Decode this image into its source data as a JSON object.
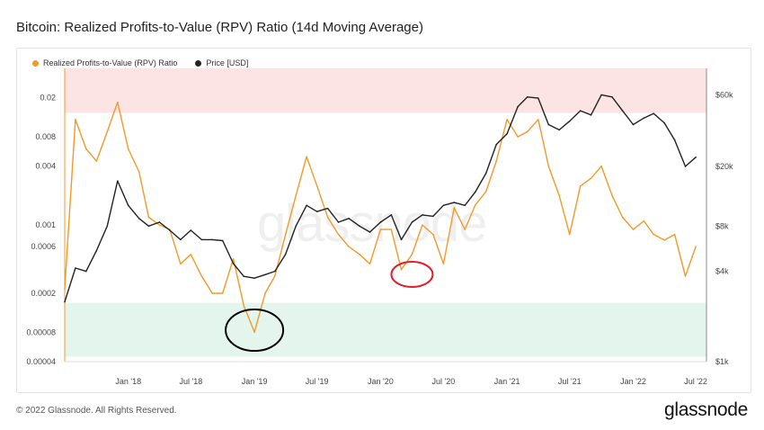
{
  "title": "Bitcoin: Realized Profits-to-Value (RPV) Ratio (14d Moving Average)",
  "footer": "© 2022 Glassnode. All Rights Reserved.",
  "brand": "glassnode",
  "watermark": "glassnode",
  "colors": {
    "rpv": "#f09a2a",
    "price": "#222222",
    "red_zone": "#fde4e4",
    "green_zone": "#e3f5ec",
    "annot_red": "#e0202a",
    "annot_black": "#000000"
  },
  "chart_data": {
    "type": "line",
    "legend": {
      "placement": "top-left",
      "items": [
        "Realized Profits-to-Value (RPV) Ratio",
        "Price [USD]"
      ]
    },
    "x_ticks": [
      "Jan '18",
      "Jul '18",
      "Jan '19",
      "Jul '19",
      "Jan '20",
      "Jul '20",
      "Jan '21",
      "Jul '21",
      "Jan '22",
      "Jul '22"
    ],
    "left_axis": {
      "scale": "log",
      "ticks": [
        "0.02",
        "0.008",
        "0.004",
        "0.001",
        "0.0006",
        "0.0002",
        "0.00008",
        "0.00004"
      ]
    },
    "right_axis": {
      "scale": "log",
      "ticks": [
        "$60k",
        "$20k",
        "$8k",
        "$4k",
        "$1k"
      ]
    },
    "bands": [
      {
        "axis": "left",
        "from": 0.014,
        "to": 0.04,
        "color": "red"
      },
      {
        "axis": "left",
        "from": 4.5e-05,
        "to": 0.00016,
        "color": "green"
      }
    ],
    "annotations": [
      {
        "shape": "ellipse",
        "color": "black",
        "date": "2019-01"
      },
      {
        "shape": "ellipse",
        "color": "red",
        "date": "2020-04"
      }
    ],
    "series": [
      {
        "name": "Realized Profits-to-Value (RPV) Ratio",
        "axis": "left",
        "x": [
          "2017-07",
          "2017-08",
          "2017-09",
          "2017-10",
          "2017-11",
          "2017-12",
          "2018-01",
          "2018-02",
          "2018-03",
          "2018-04",
          "2018-05",
          "2018-06",
          "2018-07",
          "2018-08",
          "2018-09",
          "2018-10",
          "2018-11",
          "2018-12",
          "2019-01",
          "2019-02",
          "2019-03",
          "2019-04",
          "2019-05",
          "2019-06",
          "2019-07",
          "2019-08",
          "2019-09",
          "2019-10",
          "2019-11",
          "2019-12",
          "2020-01",
          "2020-02",
          "2020-03",
          "2020-04",
          "2020-05",
          "2020-06",
          "2020-07",
          "2020-08",
          "2020-09",
          "2020-10",
          "2020-11",
          "2020-12",
          "2021-01",
          "2021-02",
          "2021-03",
          "2021-04",
          "2021-05",
          "2021-06",
          "2021-07",
          "2021-08",
          "2021-09",
          "2021-10",
          "2021-11",
          "2021-12",
          "2022-01",
          "2022-02",
          "2022-03",
          "2022-04",
          "2022-05",
          "2022-06",
          "2022-07"
        ],
        "values": [
          0.00022,
          0.012,
          0.006,
          0.0045,
          0.009,
          0.018,
          0.006,
          0.0035,
          0.0012,
          0.001,
          0.0009,
          0.0004,
          0.0005,
          0.0003,
          0.0002,
          0.0002,
          0.00045,
          0.00015,
          8e-05,
          0.0002,
          0.0003,
          0.0008,
          0.002,
          0.005,
          0.0025,
          0.0012,
          0.0008,
          0.0006,
          0.0005,
          0.0004,
          0.0009,
          0.0009,
          0.00035,
          0.0005,
          0.001,
          0.0008,
          0.0004,
          0.0015,
          0.0009,
          0.0016,
          0.0022,
          0.0045,
          0.012,
          0.008,
          0.009,
          0.012,
          0.004,
          0.002,
          0.0008,
          0.0025,
          0.003,
          0.004,
          0.002,
          0.0012,
          0.0009,
          0.0011,
          0.0008,
          0.0007,
          0.0008,
          0.0003,
          0.0006
        ]
      },
      {
        "name": "Price [USD]",
        "axis": "right",
        "x": [
          "2017-07",
          "2017-08",
          "2017-09",
          "2017-10",
          "2017-11",
          "2017-12",
          "2018-01",
          "2018-02",
          "2018-03",
          "2018-04",
          "2018-05",
          "2018-06",
          "2018-07",
          "2018-08",
          "2018-09",
          "2018-10",
          "2018-11",
          "2018-12",
          "2019-01",
          "2019-02",
          "2019-03",
          "2019-04",
          "2019-05",
          "2019-06",
          "2019-07",
          "2019-08",
          "2019-09",
          "2019-10",
          "2019-11",
          "2019-12",
          "2020-01",
          "2020-02",
          "2020-03",
          "2020-04",
          "2020-05",
          "2020-06",
          "2020-07",
          "2020-08",
          "2020-09",
          "2020-10",
          "2020-11",
          "2020-12",
          "2021-01",
          "2021-02",
          "2021-03",
          "2021-04",
          "2021-05",
          "2021-06",
          "2021-07",
          "2021-08",
          "2021-09",
          "2021-10",
          "2021-11",
          "2021-12",
          "2022-01",
          "2022-02",
          "2022-03",
          "2022-04",
          "2022-05",
          "2022-06",
          "2022-07"
        ],
        "values": [
          2500,
          4200,
          4000,
          5500,
          8000,
          16000,
          11000,
          9000,
          8000,
          8500,
          7500,
          6500,
          7500,
          6500,
          6500,
          6400,
          4500,
          3700,
          3600,
          3800,
          4000,
          5200,
          8000,
          11000,
          10000,
          10500,
          8500,
          9000,
          8000,
          7300,
          8500,
          9500,
          6500,
          8500,
          9500,
          9300,
          11000,
          11500,
          11000,
          13500,
          18000,
          28000,
          33000,
          50000,
          58000,
          57000,
          38000,
          35000,
          40000,
          47000,
          44000,
          60000,
          58000,
          47000,
          38000,
          42000,
          45000,
          39000,
          30000,
          20000,
          23000
        ]
      }
    ]
  }
}
